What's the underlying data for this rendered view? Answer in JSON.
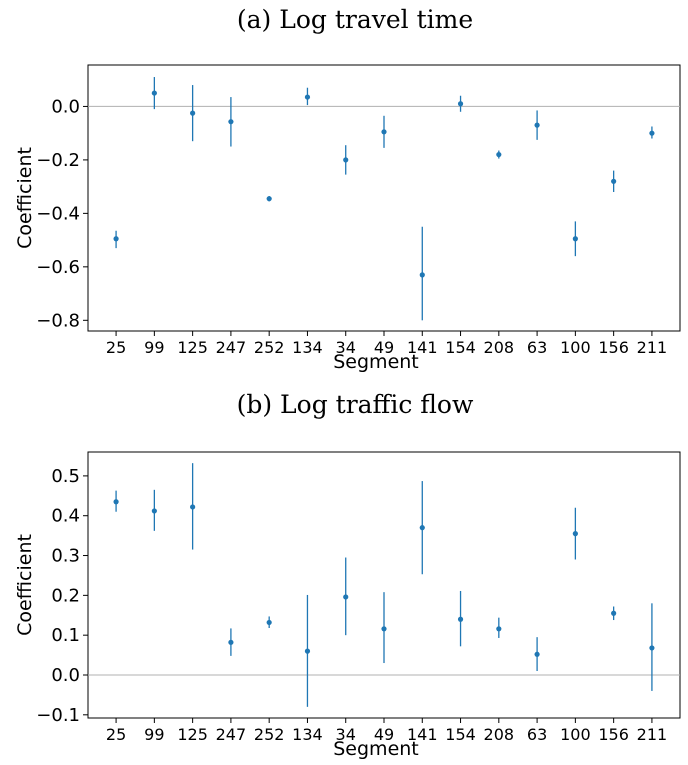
{
  "chart_data": [
    {
      "type": "scatter",
      "title": "(a) Log travel time",
      "xlabel": "Segment",
      "ylabel": "Coefficient",
      "categories": [
        "25",
        "99",
        "125",
        "247",
        "252",
        "134",
        "34",
        "49",
        "141",
        "154",
        "208",
        "63",
        "100",
        "156",
        "211"
      ],
      "values": [
        -0.495,
        0.05,
        -0.025,
        -0.057,
        -0.345,
        0.035,
        -0.2,
        -0.095,
        -0.63,
        0.01,
        -0.18,
        -0.07,
        -0.495,
        -0.28,
        -0.1
      ],
      "ci_low": [
        -0.53,
        -0.01,
        -0.13,
        -0.15,
        -0.355,
        0.005,
        -0.255,
        -0.155,
        -0.8,
        -0.02,
        -0.195,
        -0.125,
        -0.56,
        -0.32,
        -0.12
      ],
      "ci_high": [
        -0.465,
        0.11,
        0.08,
        0.035,
        -0.335,
        0.07,
        -0.145,
        -0.035,
        -0.45,
        0.04,
        -0.165,
        -0.015,
        -0.43,
        -0.24,
        -0.075
      ],
      "ylim": [
        -0.84,
        0.155
      ],
      "yticks": [
        "0.0",
        "−0.2",
        "−0.4",
        "−0.6",
        "−0.8"
      ],
      "reference_line": 0,
      "color": "#1f77b4"
    },
    {
      "type": "scatter",
      "title": "(b) Log traffic flow",
      "xlabel": "Segment",
      "ylabel": "Coefficient",
      "categories": [
        "25",
        "99",
        "125",
        "247",
        "252",
        "134",
        "34",
        "49",
        "141",
        "154",
        "208",
        "63",
        "100",
        "156",
        "211"
      ],
      "values": [
        0.435,
        0.412,
        0.422,
        0.082,
        0.132,
        0.06,
        0.196,
        0.116,
        0.37,
        0.14,
        0.116,
        0.052,
        0.355,
        0.155,
        0.068
      ],
      "ci_low": [
        0.41,
        0.362,
        0.315,
        0.048,
        0.118,
        -0.08,
        0.1,
        0.03,
        0.253,
        0.072,
        0.093,
        0.01,
        0.29,
        0.138,
        -0.04
      ],
      "ci_high": [
        0.463,
        0.465,
        0.532,
        0.117,
        0.147,
        0.201,
        0.295,
        0.208,
        0.487,
        0.211,
        0.144,
        0.095,
        0.42,
        0.172,
        0.18
      ],
      "ylim": [
        -0.108,
        0.56
      ],
      "yticks": [
        "0.5",
        "0.4",
        "0.3",
        "0.2",
        "0.1",
        "0.0",
        "−0.1"
      ],
      "reference_line": 0,
      "color": "#1f77b4"
    }
  ]
}
